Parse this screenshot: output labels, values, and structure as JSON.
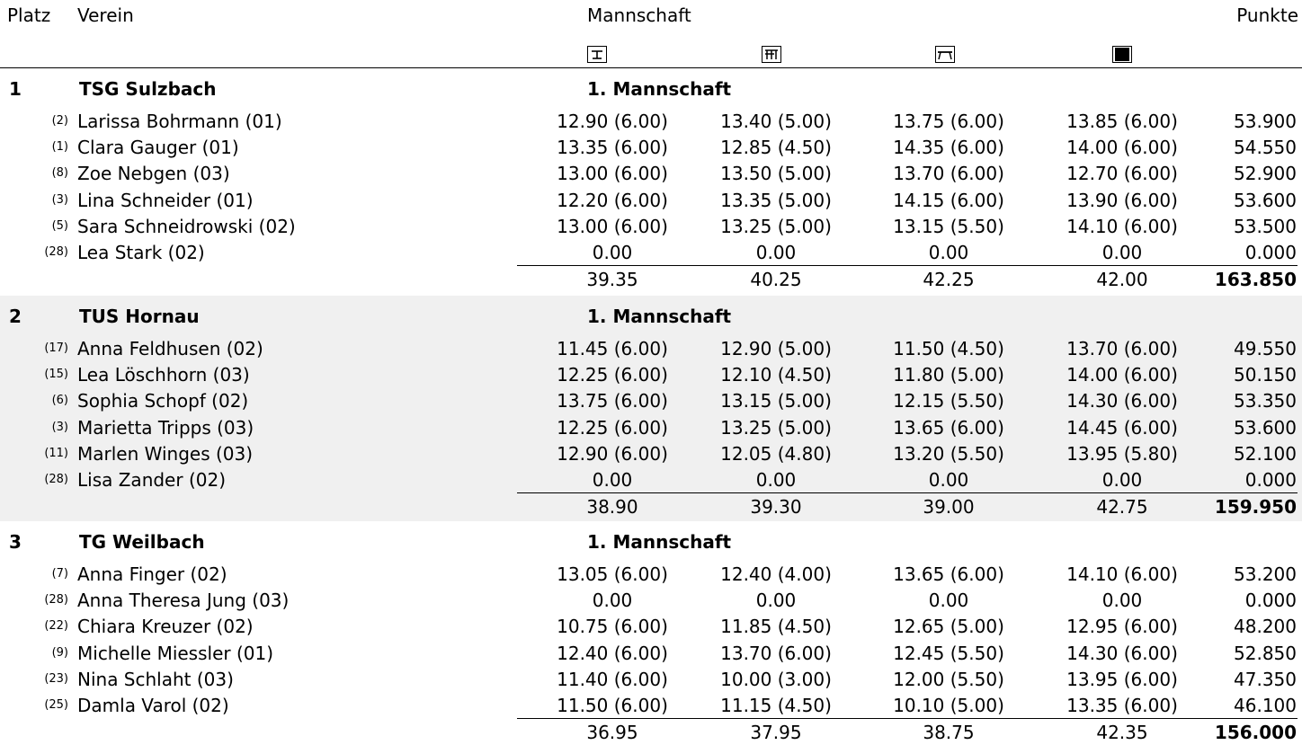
{
  "header": {
    "col_place": "Platz",
    "col_club": "Verein",
    "col_team": "Mannschaft",
    "col_points": "Punkte",
    "apparatus_icons": [
      "vault-icon",
      "uneven-bars-icon",
      "beam-icon",
      "floor-icon"
    ]
  },
  "teams": [
    {
      "place": "1",
      "club": "TSG Sulzbach",
      "team": "1. Mannschaft",
      "shaded": false,
      "athletes": [
        {
          "rank": "(2)",
          "name": "Larissa Bohrmann (01)",
          "s1": "12.90 (6.00)",
          "s2": "13.40 (5.00)",
          "s3": "13.75 (6.00)",
          "s4": "13.85 (6.00)",
          "total": "53.900"
        },
        {
          "rank": "(1)",
          "name": "Clara Gauger (01)",
          "s1": "13.35 (6.00)",
          "s2": "12.85 (4.50)",
          "s3": "14.35 (6.00)",
          "s4": "14.00 (6.00)",
          "total": "54.550"
        },
        {
          "rank": "(8)",
          "name": "Zoe Nebgen (03)",
          "s1": "13.00 (6.00)",
          "s2": "13.50 (5.00)",
          "s3": "13.70 (6.00)",
          "s4": "12.70 (6.00)",
          "total": "52.900"
        },
        {
          "rank": "(3)",
          "name": "Lina Schneider (01)",
          "s1": "12.20 (6.00)",
          "s2": "13.35 (5.00)",
          "s3": "14.15 (6.00)",
          "s4": "13.90 (6.00)",
          "total": "53.600"
        },
        {
          "rank": "(5)",
          "name": "Sara Schneidrowski (02)",
          "s1": "13.00 (6.00)",
          "s2": "13.25 (5.00)",
          "s3": "13.15 (5.50)",
          "s4": "14.10 (6.00)",
          "total": "53.500"
        },
        {
          "rank": "(28)",
          "name": "Lea Stark (02)",
          "s1": "0.00",
          "s2": "0.00",
          "s3": "0.00",
          "s4": "0.00",
          "total": "0.000"
        }
      ],
      "sums": {
        "s1": "39.35",
        "s2": "40.25",
        "s3": "42.25",
        "s4": "42.00",
        "total": "163.850"
      }
    },
    {
      "place": "2",
      "club": "TUS Hornau",
      "team": "1. Mannschaft",
      "shaded": true,
      "athletes": [
        {
          "rank": "(17)",
          "name": "Anna Feldhusen (02)",
          "s1": "11.45 (6.00)",
          "s2": "12.90 (5.00)",
          "s3": "11.50 (4.50)",
          "s4": "13.70 (6.00)",
          "total": "49.550"
        },
        {
          "rank": "(15)",
          "name": "Lea Löschhorn (03)",
          "s1": "12.25 (6.00)",
          "s2": "12.10 (4.50)",
          "s3": "11.80 (5.00)",
          "s4": "14.00 (6.00)",
          "total": "50.150"
        },
        {
          "rank": "(6)",
          "name": "Sophia Schopf (02)",
          "s1": "13.75 (6.00)",
          "s2": "13.15 (5.00)",
          "s3": "12.15 (5.50)",
          "s4": "14.30 (6.00)",
          "total": "53.350"
        },
        {
          "rank": "(3)",
          "name": "Marietta Tripps (03)",
          "s1": "12.25 (6.00)",
          "s2": "13.25 (5.00)",
          "s3": "13.65 (6.00)",
          "s4": "14.45 (6.00)",
          "total": "53.600"
        },
        {
          "rank": "(11)",
          "name": "Marlen Winges (03)",
          "s1": "12.90 (6.00)",
          "s2": "12.05 (4.80)",
          "s3": "13.20 (5.50)",
          "s4": "13.95 (5.80)",
          "total": "52.100"
        },
        {
          "rank": "(28)",
          "name": "Lisa Zander (02)",
          "s1": "0.00",
          "s2": "0.00",
          "s3": "0.00",
          "s4": "0.00",
          "total": "0.000"
        }
      ],
      "sums": {
        "s1": "38.90",
        "s2": "39.30",
        "s3": "39.00",
        "s4": "42.75",
        "total": "159.950"
      }
    },
    {
      "place": "3",
      "club": "TG Weilbach",
      "team": "1. Mannschaft",
      "shaded": false,
      "athletes": [
        {
          "rank": "(7)",
          "name": "Anna Finger (02)",
          "s1": "13.05 (6.00)",
          "s2": "12.40 (4.00)",
          "s3": "13.65 (6.00)",
          "s4": "14.10 (6.00)",
          "total": "53.200"
        },
        {
          "rank": "(28)",
          "name": "Anna Theresa Jung (03)",
          "s1": "0.00",
          "s2": "0.00",
          "s3": "0.00",
          "s4": "0.00",
          "total": "0.000"
        },
        {
          "rank": "(22)",
          "name": "Chiara Kreuzer (02)",
          "s1": "10.75 (6.00)",
          "s2": "11.85 (4.50)",
          "s3": "12.65 (5.00)",
          "s4": "12.95 (6.00)",
          "total": "48.200"
        },
        {
          "rank": "(9)",
          "name": "Michelle Miessler (01)",
          "s1": "12.40 (6.00)",
          "s2": "13.70 (6.00)",
          "s3": "12.45 (5.50)",
          "s4": "14.30 (6.00)",
          "total": "52.850"
        },
        {
          "rank": "(23)",
          "name": "Nina Schlaht (03)",
          "s1": "11.40 (6.00)",
          "s2": "10.00 (3.00)",
          "s3": "12.00 (5.50)",
          "s4": "13.95 (6.00)",
          "total": "47.350"
        },
        {
          "rank": "(25)",
          "name": "Damla Varol (02)",
          "s1": "11.50 (6.00)",
          "s2": "11.15 (4.50)",
          "s3": "10.10 (5.00)",
          "s4": "13.35 (6.00)",
          "total": "46.100"
        }
      ],
      "sums": {
        "s1": "36.95",
        "s2": "37.95",
        "s3": "38.75",
        "s4": "42.35",
        "total": "156.000"
      }
    }
  ]
}
